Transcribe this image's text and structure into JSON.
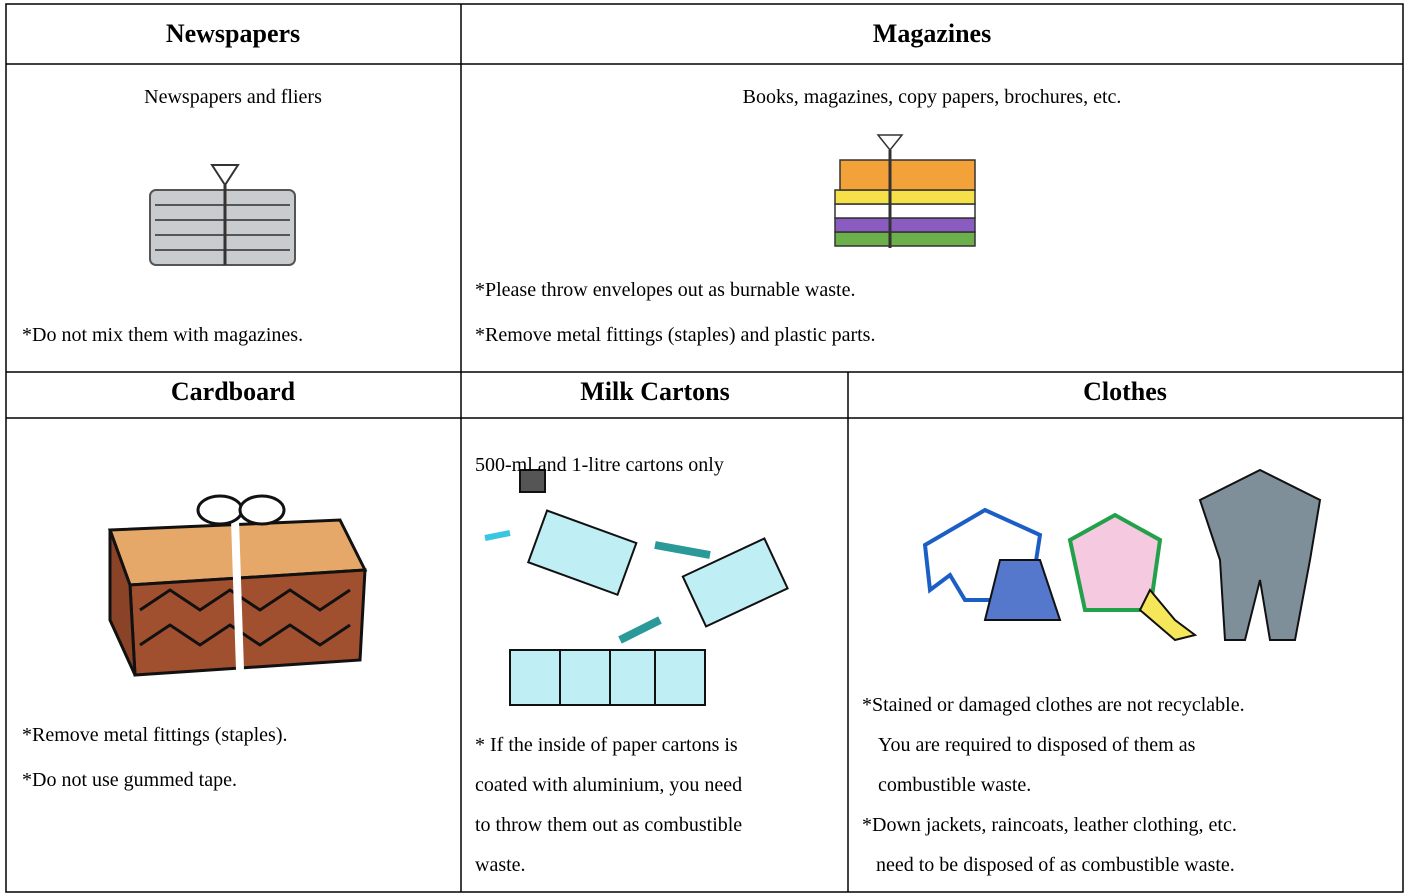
{
  "sections": [
    {
      "title": "Newspapers",
      "caption": "Newspapers and fliers",
      "notes": [
        "*Do not mix them with magazines."
      ]
    },
    {
      "title": "Magazines",
      "caption": "Books, magazines, copy papers, brochures, etc.",
      "notes": [
        "*Please throw envelopes out as burnable waste.",
        "*Remove metal fittings (staples) and plastic parts."
      ]
    },
    {
      "title": "Cardboard",
      "notes": [
        "*Remove metal fittings (staples).",
        "*Do not use gummed tape."
      ]
    },
    {
      "title": "Milk Cartons",
      "caption": "500-ml and 1-litre cartons only",
      "notes": [
        "* If the inside of paper cartons is",
        "coated with aluminium, you need",
        "to throw them out as combustible",
        "waste."
      ]
    },
    {
      "title": "Clothes",
      "notes": [
        "*Stained or damaged clothes are not recyclable.",
        "You are required to disposed of them as",
        "combustible waste.",
        "*Down jackets, raincoats, leather clothing, etc.",
        "need to be disposed of as combustible waste."
      ]
    }
  ]
}
